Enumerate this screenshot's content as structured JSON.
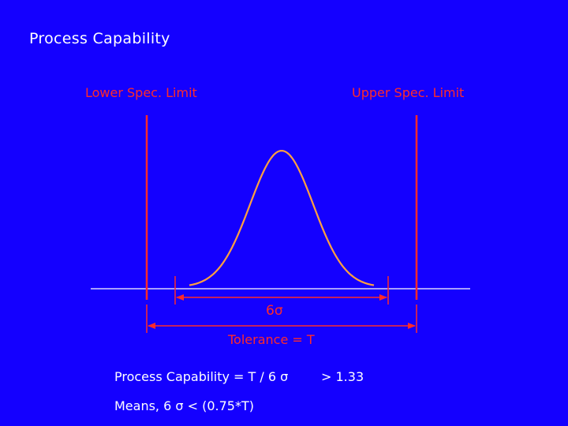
{
  "slide": {
    "title": "Process Capability",
    "lower_spec_label": "Lower Spec. Limit",
    "upper_spec_label": "Upper Spec. Limit",
    "six_sigma_label": "6σ",
    "tolerance_label": "Tolerance = T",
    "capability_formula": "Process Capability = T / 6 σ",
    "capability_threshold": "> 1.33",
    "means_line": "Means, 6 σ <  (0.75*T)"
  },
  "colors": {
    "background": "#1400ff",
    "spec_lines": "#ff2a2a",
    "curve": "#ffa040",
    "baseline": "#ffffff",
    "text": "#ffffff"
  }
}
